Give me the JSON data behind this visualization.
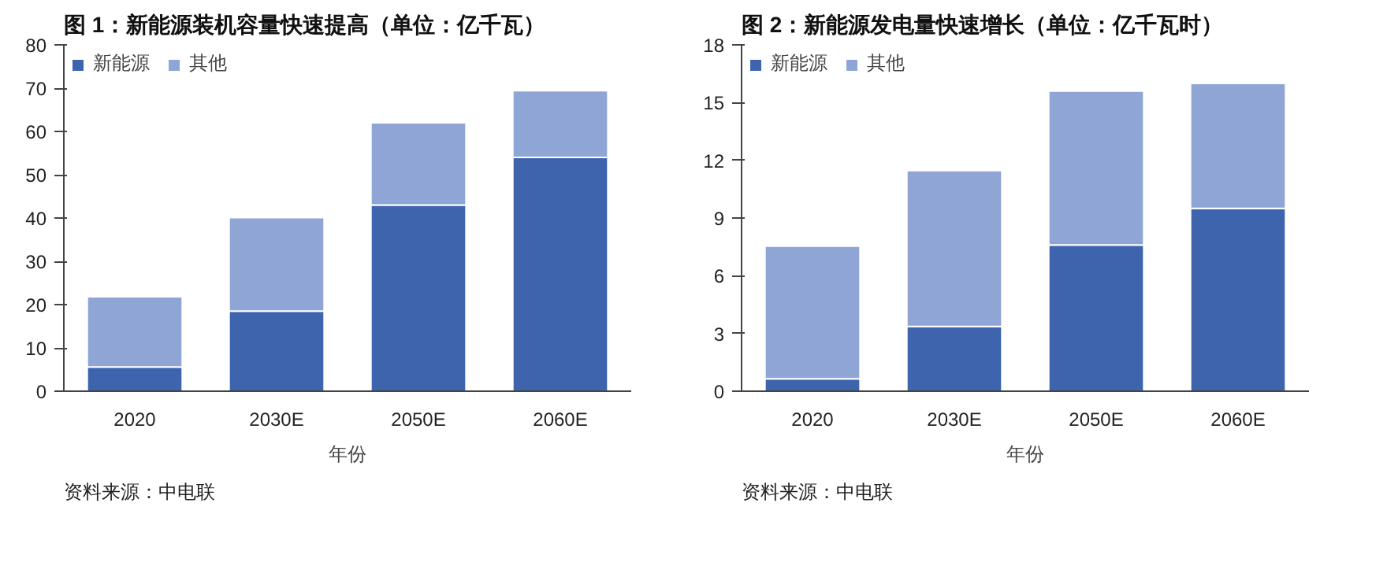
{
  "chart_data": [
    {
      "type": "bar",
      "title": "图 1：新能源装机容量快速提高（单位：亿千瓦）",
      "xlabel": "年份",
      "categories": [
        "2020",
        "2030E",
        "2050E",
        "2060E"
      ],
      "stacked": true,
      "legend": "top",
      "grid": false,
      "ylim": [
        0,
        80
      ],
      "yticks": [
        0,
        10,
        20,
        30,
        40,
        50,
        60,
        70,
        80
      ],
      "series": [
        {
          "name": "新能源",
          "color": "#3d64ad",
          "values": [
            5.6,
            18.5,
            43,
            54
          ]
        },
        {
          "name": "其他",
          "color": "#8fa5d5",
          "values": [
            16.2,
            21.6,
            19,
            15.4
          ]
        }
      ],
      "annotations": [
        "资料来源：中电联"
      ]
    },
    {
      "type": "bar",
      "title": "图 2：新能源发电量快速增长（单位：亿千瓦时）",
      "xlabel": "年份",
      "categories": [
        "2020",
        "2030E",
        "2050E",
        "2060E"
      ],
      "stacked": true,
      "legend": "top",
      "grid": false,
      "ylim": [
        0,
        18
      ],
      "yticks": [
        0,
        3,
        6,
        9,
        12,
        15,
        18
      ],
      "series": [
        {
          "name": "新能源",
          "color": "#3d64ad",
          "values": [
            0.64,
            3.36,
            7.6,
            9.5
          ]
        },
        {
          "name": "其他",
          "color": "#8fa5d5",
          "values": [
            6.9,
            8.1,
            8.0,
            6.5
          ]
        }
      ],
      "annotations": [
        "资料来源：中电联"
      ]
    }
  ]
}
